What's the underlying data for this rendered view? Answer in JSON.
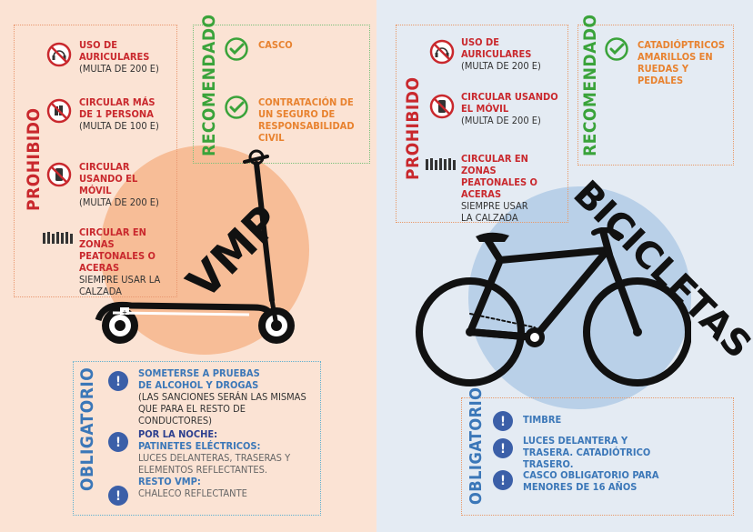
{
  "colors": {
    "left_bg": "#fbe3d4",
    "right_bg": "#e4ebf3",
    "red": "#c9282d",
    "orange": "#e8822f",
    "green": "#3aa33a",
    "blue": "#3b77b8"
  },
  "vmp": {
    "title": "VMP",
    "prohibido": {
      "label": "PROHIBIDO",
      "items": [
        {
          "title": "USO DE AURICULARES",
          "sub": "(MULTA DE 200 E)",
          "icon": "headphones-prohibited-icon"
        },
        {
          "title": "CIRCULAR MÁS DE 1 PERSONA",
          "sub": "(MULTA DE 100 E)",
          "icon": "two-persons-prohibited-icon"
        },
        {
          "title": "CIRCULAR USANDO EL MÓVIL",
          "sub": "(MULTA DE 200 E)",
          "icon": "mobile-prohibited-icon"
        },
        {
          "title": "CIRCULAR EN ZONAS PEATONALES O ACERAS",
          "sub": "SIEMPRE USAR LA CALZADA",
          "icon": "pedestrians-icon"
        }
      ]
    },
    "recomendado": {
      "label": "RECOMENDADO",
      "items": [
        {
          "title": "CASCO",
          "icon": "check-icon"
        },
        {
          "title": "CONTRATACIÓN DE UN SEGURO DE RESPONSABILIDAD CIVIL",
          "icon": "check-icon"
        }
      ]
    },
    "obligatorio": {
      "label": "OBLIGATORIO",
      "items": [
        {
          "title": "SOMETERSE A PRUEBAS DE ALCOHOL Y DROGAS",
          "sub": "(LAS SANCIONES SERÁN LAS MISMAS QUE PARA EL RESTO DE CONDUCTORES)"
        },
        {
          "title_dark": "POR LA NOCHE:",
          "title": "PATINETES ELÉCTRICOS:",
          "sub": "LUCES DELANTERAS, TRASERAS Y ELEMENTOS REFLECTANTES.",
          "title2": "RESTO VMP:",
          "sub2": "CHALECO REFLECTANTE"
        }
      ]
    }
  },
  "bici": {
    "title": "BICICLETAS",
    "prohibido": {
      "label": "PROHIBIDO",
      "items": [
        {
          "title": "USO DE AURICULARES",
          "sub": "(MULTA DE 200 E)",
          "icon": "headphones-prohibited-icon"
        },
        {
          "title": "CIRCULAR USANDO EL MÓVIL",
          "sub": "(MULTA DE 200 E)",
          "icon": "mobile-prohibited-icon"
        },
        {
          "title": "CIRCULAR EN ZONAS PEATONALES O ACERAS",
          "sub": "SIEMPRE USAR LA CALZADA",
          "icon": "pedestrians-icon"
        }
      ]
    },
    "recomendado": {
      "label": "RECOMENDADO",
      "items": [
        {
          "title": "CATADIÓPTRICOS AMARILLOS EN RUEDAS Y PEDALES",
          "icon": "check-icon"
        }
      ]
    },
    "obligatorio": {
      "label": "OBLIGATORIO",
      "items": [
        {
          "title": "TIMBRE"
        },
        {
          "title": "LUCES DELANTERA Y TRASERA. CATADIÓTRICO TRASERO."
        },
        {
          "title": "CASCO OBLIGATORIO PARA MENORES DE 16 AÑOS"
        }
      ]
    }
  }
}
